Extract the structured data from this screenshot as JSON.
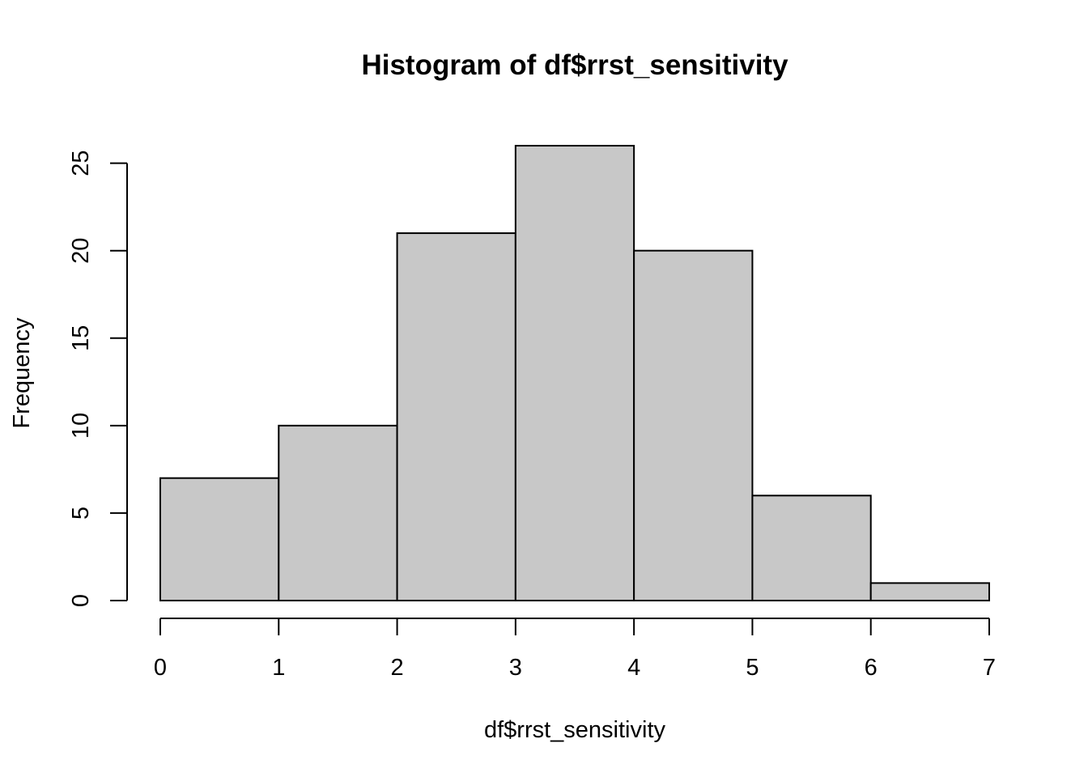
{
  "chart_data": {
    "type": "bar",
    "title": "Histogram of df$rrst_sensitivity",
    "xlabel": "df$rrst_sensitivity",
    "ylabel": "Frequency",
    "bin_edges": [
      0,
      1,
      2,
      3,
      4,
      5,
      6,
      7
    ],
    "values": [
      7,
      10,
      21,
      26,
      20,
      6,
      1
    ],
    "x_ticks": [
      0,
      1,
      2,
      3,
      4,
      5,
      6,
      7
    ],
    "y_ticks": [
      0,
      5,
      10,
      15,
      20,
      25
    ],
    "xlim": [
      0,
      7
    ],
    "ylim": [
      0,
      26
    ],
    "bar_color": "#c8c8c8",
    "edge_color": "#000000",
    "grid": false,
    "legend": "none"
  }
}
